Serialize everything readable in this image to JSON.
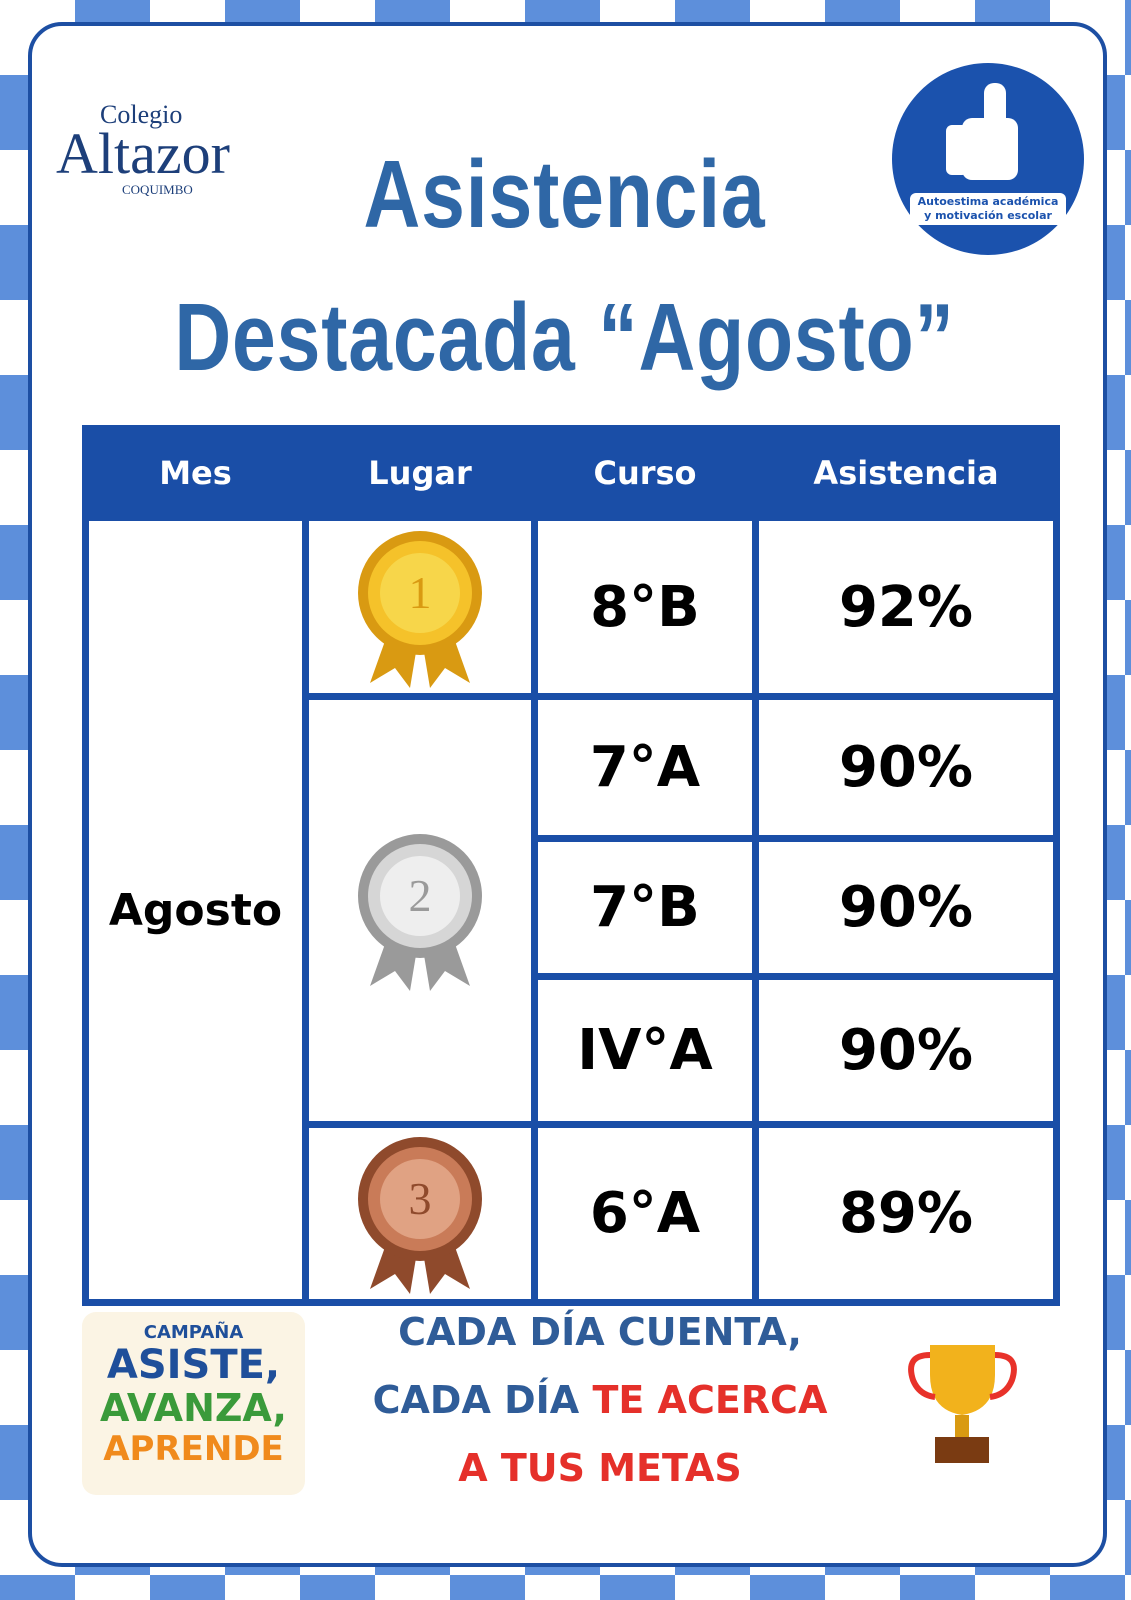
{
  "logo": {
    "line1": "Colegio",
    "line2": "Altazor",
    "line3": "COQUIMBO"
  },
  "badge": {
    "line1": "Autoestima académica",
    "line2": "y motivación escolar"
  },
  "title": {
    "line1": "Asistencia",
    "line2": "Destacada “Agosto”"
  },
  "table": {
    "headers": [
      "Mes",
      "Lugar",
      "Curso",
      "Asistencia"
    ],
    "month": "Agosto",
    "places": [
      {
        "medal": "1",
        "rows": [
          [
            "8°B",
            "92%"
          ]
        ]
      },
      {
        "medal": "2",
        "rows": [
          [
            "7°A",
            "90%"
          ],
          [
            "7°B",
            "90%"
          ],
          [
            "IV°A",
            "90%"
          ]
        ]
      },
      {
        "medal": "3",
        "rows": [
          [
            "6°A",
            "89%"
          ]
        ]
      }
    ]
  },
  "campaign": {
    "line1": "CAMPAÑA",
    "line2": "ASISTE,",
    "line3": "AVANZA,",
    "line4": "APRENDE"
  },
  "slogan": {
    "line1": "CADA DÍA CUENTA,",
    "line2a": "CADA DÍA",
    "line2b": "TE ACERCA",
    "line3": "A TUS METAS"
  }
}
